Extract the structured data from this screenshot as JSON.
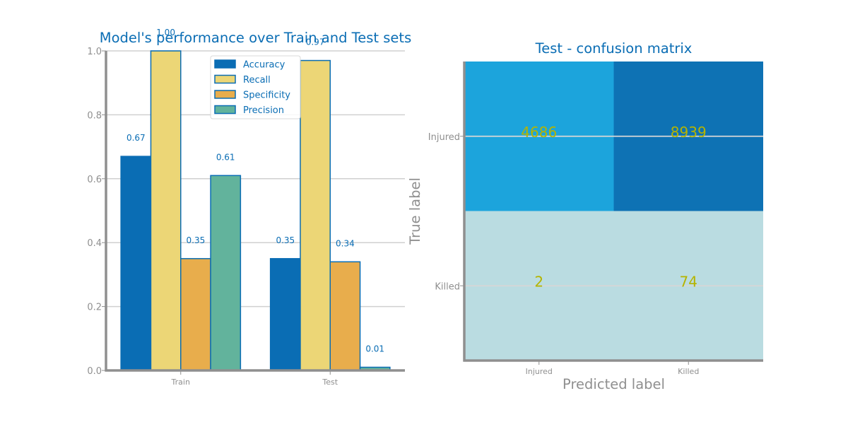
{
  "colors": {
    "title": "#0a6db4",
    "axis": "#8f8f8f",
    "grid": "#d0d0d0",
    "value_label": "#0a6db4",
    "bar_edge": "#0a6db4",
    "cm_text": "#b5b400"
  },
  "chart_data": [
    {
      "type": "bar",
      "title": "Model's performance over Train and Test sets",
      "xlabel": "",
      "ylabel": "",
      "categories": [
        "Train",
        "Test"
      ],
      "ylim": [
        0,
        1.0
      ],
      "yticks": [
        "0.0",
        "0.2",
        "0.4",
        "0.6",
        "0.8",
        "1.0"
      ],
      "grid": true,
      "legend_position": "top-center",
      "series": [
        {
          "name": "Accuracy",
          "color": "#0a6db4",
          "values": [
            0.67,
            0.35
          ],
          "labels": [
            "0.67",
            "0.35"
          ]
        },
        {
          "name": "Recall",
          "color": "#ecd676",
          "values": [
            1.0,
            0.97
          ],
          "labels": [
            "1.00",
            "0.97"
          ]
        },
        {
          "name": "Specificity",
          "color": "#e8ad4c",
          "values": [
            0.35,
            0.34
          ],
          "labels": [
            "0.35",
            "0.34"
          ]
        },
        {
          "name": "Precision",
          "color": "#62b39c",
          "values": [
            0.61,
            0.01
          ],
          "labels": [
            "0.61",
            "0.01"
          ]
        }
      ]
    },
    {
      "type": "heatmap",
      "title": "Test - confusion matrix",
      "xlabel": "Predicted label",
      "ylabel": "True label",
      "x_categories": [
        "Injured",
        "Killed"
      ],
      "y_categories": [
        "Injured",
        "Killed"
      ],
      "values": [
        [
          4686,
          8939
        ],
        [
          2,
          74
        ]
      ],
      "cell_colors": [
        [
          "#1ca4dc",
          "#0e72b4"
        ],
        [
          "#badce1",
          "#badce1"
        ]
      ],
      "grid": true
    }
  ]
}
